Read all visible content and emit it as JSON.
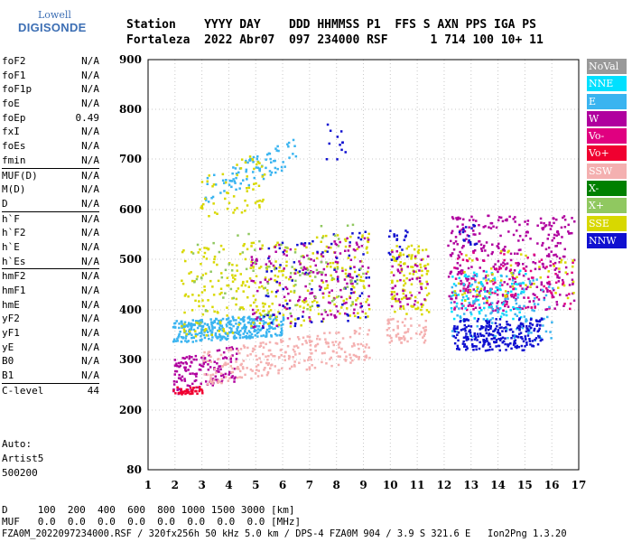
{
  "logo": {
    "line1": "Lowell",
    "line2": "DIGISONDE"
  },
  "header": {
    "row1": "Station    YYYY DAY    DDD HHMMSS P1  FFS S AXN PPS IGA PS",
    "row2": "Fortaleza  2022 Abr07  097 234000 RSF      1 714 100 10+ 11"
  },
  "params": [
    {
      "group": [
        {
          "k": "foF2",
          "v": "N/A"
        },
        {
          "k": "foF1",
          "v": "N/A"
        },
        {
          "k": "foF1p",
          "v": "N/A"
        },
        {
          "k": "foE",
          "v": "N/A"
        },
        {
          "k": "foEp",
          "v": "0.49"
        },
        {
          "k": "fxI",
          "v": "N/A"
        },
        {
          "k": "foEs",
          "v": "N/A"
        },
        {
          "k": "fmin",
          "v": "N/A"
        }
      ]
    },
    {
      "group": [
        {
          "k": "MUF(D)",
          "v": "N/A"
        },
        {
          "k": "M(D)",
          "v": "N/A"
        },
        {
          "k": "D",
          "v": "N/A"
        }
      ]
    },
    {
      "group": [
        {
          "k": "h`F",
          "v": "N/A"
        },
        {
          "k": "h`F2",
          "v": "N/A"
        },
        {
          "k": "h`E",
          "v": "N/A"
        },
        {
          "k": "h`Es",
          "v": "N/A"
        }
      ]
    },
    {
      "group": [
        {
          "k": "hmF2",
          "v": "N/A"
        },
        {
          "k": "hmF1",
          "v": "N/A"
        },
        {
          "k": "hmE",
          "v": "N/A"
        },
        {
          "k": "yF2",
          "v": "N/A"
        },
        {
          "k": "yF1",
          "v": "N/A"
        },
        {
          "k": "yE",
          "v": "N/A"
        },
        {
          "k": "B0",
          "v": "N/A"
        },
        {
          "k": "B1",
          "v": "N/A"
        }
      ]
    },
    {
      "group": [
        {
          "k": "C-level",
          "v": "44"
        }
      ]
    }
  ],
  "auto": {
    "l1": "Auto:",
    "l2": "Artist5",
    "l3": "500200"
  },
  "legend": [
    {
      "label": "NoVal",
      "color": "#999999"
    },
    {
      "label": "NNE",
      "color": "#00e0ff"
    },
    {
      "label": "E",
      "color": "#3ab4f0"
    },
    {
      "label": "W",
      "color": "#b0009e"
    },
    {
      "label": "Vo-",
      "color": "#e00080"
    },
    {
      "label": "Vo+",
      "color": "#f00030"
    },
    {
      "label": "SSW",
      "color": "#f4b0b0"
    },
    {
      "label": "X-",
      "color": "#008000"
    },
    {
      "label": "X+",
      "color": "#90c860"
    },
    {
      "label": "SSE",
      "color": "#d8d800"
    },
    {
      "label": "NNW",
      "color": "#1010d0"
    }
  ],
  "chart_data": {
    "type": "scatter",
    "xlim": [
      1,
      17
    ],
    "ylim": [
      80,
      900
    ],
    "xticks": [
      1,
      2,
      3,
      4,
      5,
      6,
      7,
      8,
      9,
      10,
      11,
      12,
      13,
      14,
      15,
      16,
      17
    ],
    "yticks": [
      80,
      200,
      300,
      400,
      500,
      600,
      700,
      800,
      900
    ],
    "grid": true,
    "xlabel": "",
    "ylabel": "",
    "clusters": [
      {
        "color": "#b0009e",
        "x0": 1.9,
        "x1": 4.3,
        "y0": 232,
        "y1": 330,
        "n": 140,
        "trend": 0.45
      },
      {
        "color": "#f00030",
        "x0": 1.9,
        "x1": 3.0,
        "y0": 232,
        "y1": 250,
        "n": 40,
        "trend": 0.3
      },
      {
        "color": "#f4b0b0",
        "x0": 3.0,
        "x1": 9.2,
        "y0": 250,
        "y1": 370,
        "n": 260,
        "trend": 0.7
      },
      {
        "color": "#f4b0b0",
        "x0": 9.8,
        "x1": 11.3,
        "y0": 335,
        "y1": 385,
        "n": 60,
        "trend": 0
      },
      {
        "color": "#3ab4f0",
        "x0": 1.9,
        "x1": 6.0,
        "y0": 335,
        "y1": 395,
        "n": 330,
        "trend": 0.4
      },
      {
        "color": "#3ab4f0",
        "x0": 3.0,
        "x1": 6.5,
        "y0": 610,
        "y1": 745,
        "n": 90,
        "trend": 1
      },
      {
        "color": "#d8d800",
        "x0": 2.2,
        "x1": 9.2,
        "y0": 345,
        "y1": 560,
        "n": 330,
        "trend": 0.3
      },
      {
        "color": "#d8d800",
        "x0": 2.9,
        "x1": 5.3,
        "y0": 560,
        "y1": 720,
        "n": 60,
        "trend": 0.5
      },
      {
        "color": "#b0009e",
        "x0": 4.8,
        "x1": 9.2,
        "y0": 360,
        "y1": 560,
        "n": 180,
        "trend": 0.3
      },
      {
        "color": "#1010d0",
        "x0": 5.0,
        "x1": 9.2,
        "y0": 360,
        "y1": 560,
        "n": 80,
        "trend": 0.2
      },
      {
        "color": "#1010d0",
        "x0": 7.6,
        "x1": 8.3,
        "y0": 700,
        "y1": 780,
        "n": 12,
        "trend": 0
      },
      {
        "color": "#90c860",
        "x0": 2.5,
        "x1": 9.0,
        "y0": 370,
        "y1": 580,
        "n": 90,
        "trend": 0.3
      },
      {
        "color": "#d8d800",
        "x0": 10.0,
        "x1": 11.4,
        "y0": 390,
        "y1": 530,
        "n": 110,
        "trend": 0
      },
      {
        "color": "#b0009e",
        "x0": 10.0,
        "x1": 11.4,
        "y0": 400,
        "y1": 520,
        "n": 50,
        "trend": 0
      },
      {
        "color": "#1010d0",
        "x0": 9.9,
        "x1": 10.6,
        "y0": 500,
        "y1": 560,
        "n": 20,
        "trend": 0
      },
      {
        "color": "#b0009e",
        "x0": 12.1,
        "x1": 16.8,
        "y0": 400,
        "y1": 590,
        "n": 380,
        "trend": 0
      },
      {
        "color": "#e00080",
        "x0": 12.1,
        "x1": 16.8,
        "y0": 400,
        "y1": 520,
        "n": 100,
        "trend": 0
      },
      {
        "color": "#00e0ff",
        "x0": 12.2,
        "x1": 15.0,
        "y0": 380,
        "y1": 480,
        "n": 90,
        "trend": 0
      },
      {
        "color": "#3ab4f0",
        "x0": 12.2,
        "x1": 16.0,
        "y0": 340,
        "y1": 470,
        "n": 120,
        "trend": 0
      },
      {
        "color": "#1010d0",
        "x0": 12.3,
        "x1": 15.6,
        "y0": 320,
        "y1": 385,
        "n": 260,
        "trend": 0
      },
      {
        "color": "#d8d800",
        "x0": 12.2,
        "x1": 16.8,
        "y0": 420,
        "y1": 520,
        "n": 60,
        "trend": 0
      },
      {
        "color": "#1010d0",
        "x0": 12.5,
        "x1": 13.2,
        "y0": 530,
        "y1": 580,
        "n": 15,
        "trend": 0
      }
    ]
  },
  "bottom": {
    "d_row": "D     100  200  400  600  800 1000 1500 3000 [km]",
    "muf_row": "MUF   0.0  0.0  0.0  0.0  0.0  0.0  0.0  0.0 [MHz]",
    "file_row": "FZA0M_2022097234000.RSF / 320fx256h 50 kHz 5.0 km / DPS-4 FZA0M 904 / 3.9 S 321.6 E   Ion2Png 1.3.20"
  }
}
